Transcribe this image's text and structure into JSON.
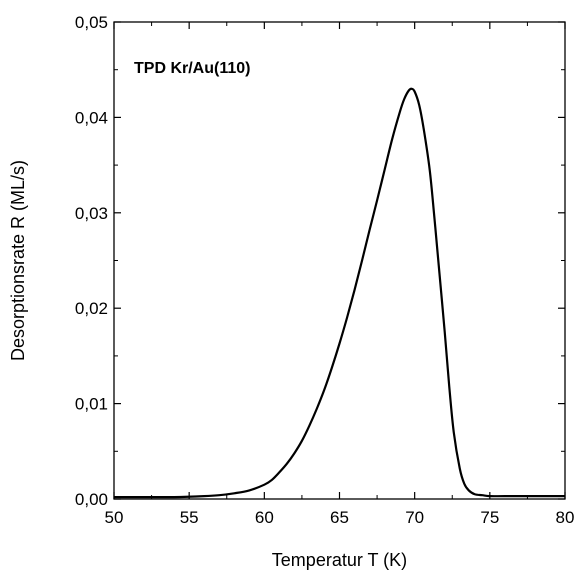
{
  "chart_data": {
    "type": "line",
    "annotation": "TPD Kr/Au(110)",
    "xlabel": "Temperatur T (K)",
    "ylabel": "Desorptionsrate R (ML/s)",
    "xlim": [
      50,
      80
    ],
    "ylim": [
      0,
      0.05
    ],
    "x_ticks": [
      50,
      55,
      60,
      65,
      70,
      75,
      80
    ],
    "x_tick_labels": [
      "50",
      "55",
      "60",
      "65",
      "70",
      "75",
      "80"
    ],
    "y_ticks": [
      0,
      0.01,
      0.02,
      0.03,
      0.04,
      0.05
    ],
    "y_tick_labels": [
      "0,00",
      "0,01",
      "0,02",
      "0,03",
      "0,04",
      "0,05"
    ],
    "grid": false,
    "legend": "none",
    "series": [
      {
        "color": "#000000",
        "x": [
          50,
          52,
          54,
          56,
          57,
          58,
          59,
          60,
          60.5,
          61,
          61.5,
          62,
          62.5,
          63,
          63.5,
          64,
          64.5,
          65,
          65.5,
          66,
          66.5,
          67,
          67.5,
          68,
          68.5,
          69,
          69.3,
          69.6,
          69.8,
          70,
          70.3,
          70.6,
          71,
          71.3,
          71.6,
          72,
          72.3,
          72.6,
          73,
          73.3,
          73.6,
          74,
          74.5,
          75,
          76,
          78,
          80
        ],
        "y": [
          0.0002,
          0.0002,
          0.0002,
          0.0003,
          0.0004,
          0.0006,
          0.0009,
          0.0015,
          0.002,
          0.0028,
          0.0037,
          0.0048,
          0.0061,
          0.0077,
          0.0095,
          0.0115,
          0.0138,
          0.0163,
          0.019,
          0.0219,
          0.025,
          0.0282,
          0.0313,
          0.0345,
          0.0377,
          0.0405,
          0.0419,
          0.0428,
          0.043,
          0.0427,
          0.0413,
          0.0388,
          0.0345,
          0.0297,
          0.0245,
          0.0175,
          0.0118,
          0.007,
          0.0032,
          0.0016,
          0.0009,
          0.0005,
          0.0004,
          0.0003,
          0.0003,
          0.0003,
          0.0003
        ]
      }
    ]
  }
}
